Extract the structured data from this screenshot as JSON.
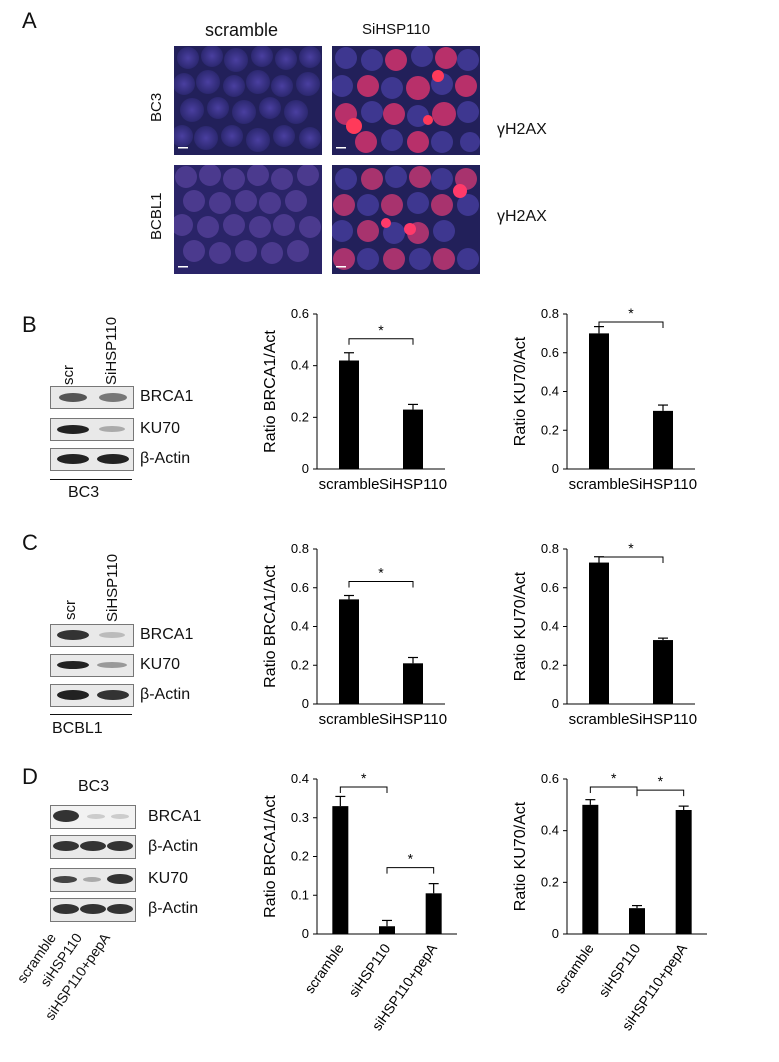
{
  "panels": {
    "A": {
      "label": "A",
      "col_headers": [
        "scramble",
        "SiHSP110"
      ],
      "row_labels": [
        "BC3",
        "BCBL1"
      ],
      "stain": "γH2AX"
    },
    "B": {
      "label": "B",
      "lane_labels": [
        "scr",
        "SiHSP110"
      ],
      "bands": [
        "BRCA1",
        "KU70",
        "β-Actin"
      ],
      "cell_line": "BC3"
    },
    "C": {
      "label": "C",
      "lane_labels": [
        "scr",
        "SiHSP110"
      ],
      "bands": [
        "BRCA1",
        "KU70",
        "β-Actin"
      ],
      "cell_line": "BCBL1"
    },
    "D": {
      "label": "D",
      "cell_line": "BC3",
      "bands_top": [
        "BRCA1",
        "β-Actin"
      ],
      "bands_bottom": [
        "KU70",
        "β-Actin"
      ],
      "lane_labels": [
        "scramble",
        "siHSP110",
        "siHSP110+pepA"
      ]
    }
  },
  "chart_data": [
    {
      "id": "B-brca1",
      "type": "bar",
      "categories": [
        "scramble",
        "SiHSP110"
      ],
      "values": [
        0.42,
        0.23
      ],
      "errors": [
        0.03,
        0.02
      ],
      "ylabel": "Ratio BRCA1/Act",
      "ylim": [
        0,
        0.6
      ],
      "yticks": [
        "0",
        "0.2",
        "0.4",
        "0.6"
      ],
      "significance": [
        "*"
      ]
    },
    {
      "id": "B-ku70",
      "type": "bar",
      "categories": [
        "scramble",
        "SiHSP110"
      ],
      "values": [
        0.7,
        0.3
      ],
      "errors": [
        0.035,
        0.03
      ],
      "ylabel": "Ratio KU70/Act",
      "ylim": [
        0,
        0.8
      ],
      "yticks": [
        "0",
        "0.2",
        "0.4",
        "0.6",
        "0.8"
      ],
      "significance": [
        "*"
      ]
    },
    {
      "id": "C-brca1",
      "type": "bar",
      "categories": [
        "scramble",
        "SiHSP110"
      ],
      "values": [
        0.54,
        0.21
      ],
      "errors": [
        0.02,
        0.03
      ],
      "ylabel": "Ratio BRCA1/Act",
      "ylim": [
        0,
        0.8
      ],
      "yticks": [
        "0",
        "0.2",
        "0.4",
        "0.6",
        "0.8"
      ],
      "significance": [
        "*"
      ]
    },
    {
      "id": "C-ku70",
      "type": "bar",
      "categories": [
        "scramble",
        "SiHSP110"
      ],
      "values": [
        0.73,
        0.33
      ],
      "errors": [
        0.03,
        0.01
      ],
      "ylabel": "Ratio KU70/Act",
      "ylim": [
        0,
        0.8
      ],
      "yticks": [
        "0",
        "0.2",
        "0.4",
        "0.6",
        "0.8"
      ],
      "significance": [
        "*"
      ]
    },
    {
      "id": "D-brca1",
      "type": "bar",
      "categories": [
        "scramble",
        "siHSP110",
        "siHSP110+pepA"
      ],
      "values": [
        0.33,
        0.02,
        0.105
      ],
      "errors": [
        0.025,
        0.015,
        0.025
      ],
      "ylabel": "Ratio BRCA1/Act",
      "ylim": [
        0,
        0.4
      ],
      "yticks": [
        "0",
        "0.1",
        "0.2",
        "0.3",
        "0.4"
      ],
      "significance": [
        "*",
        "*"
      ]
    },
    {
      "id": "D-ku70",
      "type": "bar",
      "categories": [
        "scramble",
        "siHSP110",
        "siHSP110+pepA"
      ],
      "values": [
        0.5,
        0.1,
        0.48
      ],
      "errors": [
        0.02,
        0.01,
        0.015
      ],
      "ylabel": "Ratio KU70/Act",
      "ylim": [
        0,
        0.6
      ],
      "yticks": [
        "0",
        "0.2",
        "0.4",
        "0.6"
      ],
      "significance": [
        "*",
        "*"
      ]
    }
  ]
}
